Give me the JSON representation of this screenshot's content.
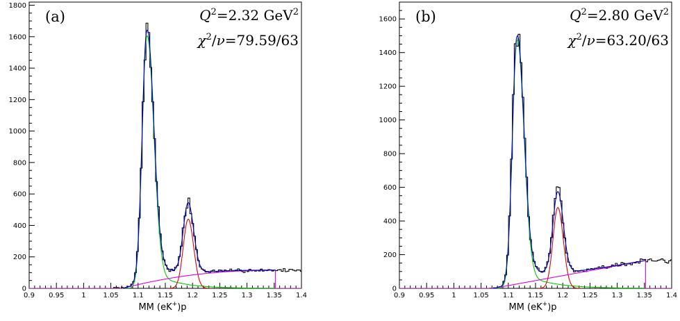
{
  "chart_data": [
    {
      "type": "line",
      "panel_label": "(a)",
      "q2_value": "2.32",
      "q2_unit": "GeV",
      "chi2_value": "79.59/63",
      "xlabel": "MM (eK",
      "xlabel_suffix": ")p",
      "xlim": [
        0.9,
        1.4
      ],
      "ylim": [
        0,
        1820
      ],
      "x_ticks": [
        0.9,
        0.95,
        1,
        1.05,
        1.1,
        1.15,
        1.2,
        1.25,
        1.3,
        1.35,
        1.4
      ],
      "x_tick_labels": [
        "0.9",
        "0.95",
        "1",
        "1.05",
        "1.1",
        "1.15",
        "1.2",
        "1.25",
        "1.3",
        "1.35",
        "1.4"
      ],
      "y_ticks": [
        0,
        200,
        400,
        600,
        800,
        1000,
        1200,
        1400,
        1600,
        1800
      ],
      "y_tick_labels": [
        "0",
        "200",
        "400",
        "600",
        "800",
        "1000",
        "1200",
        "1400",
        "1600",
        "1800"
      ],
      "params": {
        "lambda": {
          "amp": 1600,
          "mu": 1.116,
          "sL": 0.0085,
          "sR": 0.0125,
          "tailAmp": 130,
          "tailTau": 0.045
        },
        "sigma": {
          "amp": 440,
          "mu": 1.192,
          "sL": 0.009,
          "sR": 0.01
        },
        "bkg": {
          "x0": 1.072,
          "x1": 1.352,
          "peak": 115,
          "shape": "sat"
        },
        "noise_seed": 7,
        "noise_amp": 0.06,
        "data_extend_to": 1.4
      },
      "series": [
        {
          "color": "#000000"
        },
        {
          "color": "#0000cc"
        },
        {
          "color": "#00cc00"
        },
        {
          "color": "#dd0000"
        },
        {
          "color": "#dd00dd"
        }
      ]
    },
    {
      "type": "line",
      "panel_label": "(b)",
      "q2_value": "2.80",
      "q2_unit": "GeV",
      "chi2_value": "63.20/63",
      "xlabel": "MM (eK",
      "xlabel_suffix": ")p",
      "xlim": [
        0.9,
        1.4
      ],
      "ylim": [
        0,
        1700
      ],
      "x_ticks": [
        0.9,
        0.95,
        1,
        1.05,
        1.1,
        1.15,
        1.2,
        1.25,
        1.3,
        1.35,
        1.4
      ],
      "x_tick_labels": [
        "0.9",
        "0.95",
        "1",
        "1.05",
        "1.1",
        "1.15",
        "1.2",
        "1.25",
        "1.3",
        "1.35",
        "1.4"
      ],
      "y_ticks": [
        0,
        200,
        400,
        600,
        800,
        1000,
        1200,
        1400,
        1600
      ],
      "y_tick_labels": [
        "0",
        "200",
        "400",
        "600",
        "800",
        "1000",
        "1200",
        "1400",
        "1600"
      ],
      "params": {
        "lambda": {
          "amp": 1470,
          "mu": 1.116,
          "sL": 0.0085,
          "sR": 0.0125,
          "tailAmp": 110,
          "tailTau": 0.05
        },
        "sigma": {
          "amp": 480,
          "mu": 1.191,
          "sL": 0.009,
          "sR": 0.01
        },
        "bkg": {
          "x0": 1.072,
          "x1": 1.352,
          "peak": 165,
          "shape": "lin"
        },
        "noise_seed": 13,
        "noise_amp": 0.06,
        "data_extend_to": 1.4
      },
      "series": [
        {
          "color": "#000000"
        },
        {
          "color": "#0000cc"
        },
        {
          "color": "#00cc00"
        },
        {
          "color": "#dd0000"
        },
        {
          "color": "#dd00dd"
        }
      ]
    }
  ]
}
